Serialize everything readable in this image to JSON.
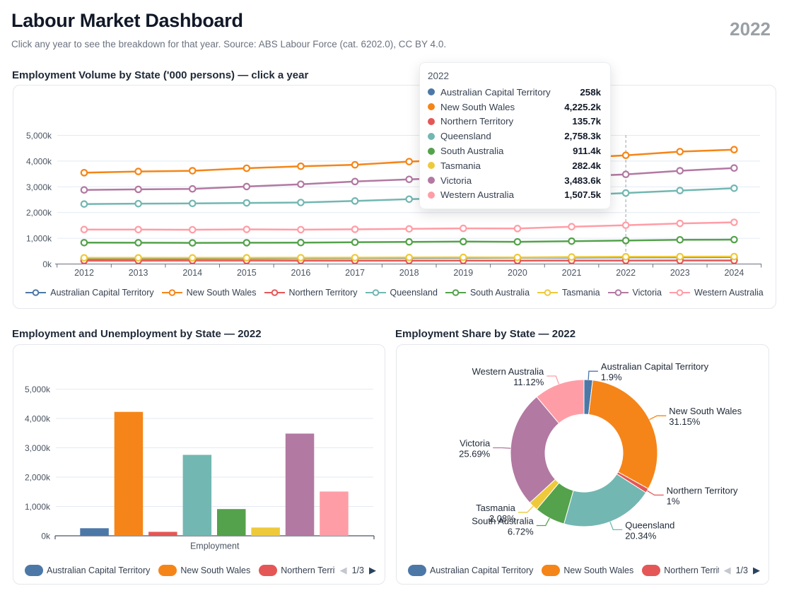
{
  "header": {
    "title": "Labour Market Dashboard",
    "year_badge": "2022",
    "subtitle": "Click any year to see the breakdown for that year. Source: ABS Labour Force (cat. 6202.0), CC BY 4.0."
  },
  "sections": {
    "line": {
      "heading": "Employment Volume by State ('000 persons) — click a year"
    },
    "bar": {
      "heading": "Employment and Unemployment by State — 2022"
    },
    "pie": {
      "heading": "Employment Share by State — 2022"
    }
  },
  "tooltip": {
    "title": "2022",
    "rows": [
      {
        "name": "Australian Capital Territory",
        "value": "258k",
        "color": "#4c78a8"
      },
      {
        "name": "New South Wales",
        "value": "4,225.2k",
        "color": "#f58518"
      },
      {
        "name": "Northern Territory",
        "value": "135.7k",
        "color": "#e45756"
      },
      {
        "name": "Queensland",
        "value": "2,758.3k",
        "color": "#72b7b2"
      },
      {
        "name": "South Australia",
        "value": "911.4k",
        "color": "#54a24b"
      },
      {
        "name": "Tasmania",
        "value": "282.4k",
        "color": "#eeca3b"
      },
      {
        "name": "Victoria",
        "value": "3,483.6k",
        "color": "#b279a2"
      },
      {
        "name": "Western Australia",
        "value": "1,507.5k",
        "color": "#ff9da6"
      }
    ]
  },
  "legend_pager": {
    "page": "1/3",
    "prev_icon": "◀",
    "next_icon": "▶"
  },
  "chart_data": [
    {
      "id": "employment-volume-line",
      "type": "line",
      "title": "Employment Volume by State ('000 persons) — click a year",
      "x": [
        "2012",
        "2013",
        "2014",
        "2015",
        "2016",
        "2017",
        "2018",
        "2019",
        "2020",
        "2021",
        "2022",
        "2023",
        "2024"
      ],
      "selected_x": "2022",
      "ylabel": "'000 persons",
      "ylim": [
        0,
        5500
      ],
      "yticks": [
        "0k",
        "1,000k",
        "2,000k",
        "3,000k",
        "4,000k",
        "5,000k"
      ],
      "grid": true,
      "legend_position": "bottom",
      "series": [
        {
          "name": "Australian Capital Territory",
          "color": "#4c78a8",
          "values": [
            206,
            209,
            212,
            216,
            222,
            228,
            234,
            241,
            244,
            250,
            258,
            262,
            266
          ]
        },
        {
          "name": "New South Wales",
          "color": "#f58518",
          "values": [
            3549,
            3597,
            3625,
            3722,
            3800,
            3856,
            3980,
            4062,
            4020,
            4112,
            4225.2,
            4368,
            4445
          ]
        },
        {
          "name": "Northern Territory",
          "color": "#e45756",
          "values": [
            132,
            133,
            134,
            134,
            133,
            132,
            133,
            134,
            131,
            134,
            135.7,
            136,
            137
          ]
        },
        {
          "name": "Queensland",
          "color": "#72b7b2",
          "values": [
            2330,
            2345,
            2355,
            2375,
            2390,
            2450,
            2520,
            2565,
            2550,
            2672,
            2758.3,
            2855,
            2945
          ]
        },
        {
          "name": "South Australia",
          "color": "#54a24b",
          "values": [
            830,
            828,
            822,
            826,
            832,
            845,
            860,
            870,
            862,
            888,
            911.4,
            940,
            948
          ]
        },
        {
          "name": "Tasmania",
          "color": "#eeca3b",
          "values": [
            240,
            239,
            238,
            242,
            244,
            247,
            252,
            258,
            255,
            272,
            282.4,
            286,
            288
          ]
        },
        {
          "name": "Victoria",
          "color": "#b279a2",
          "values": [
            2879,
            2900,
            2920,
            3010,
            3100,
            3205,
            3290,
            3358,
            3295,
            3402,
            3483.6,
            3625,
            3730
          ]
        },
        {
          "name": "Western Australia",
          "color": "#ff9da6",
          "values": [
            1340,
            1338,
            1332,
            1345,
            1335,
            1348,
            1365,
            1385,
            1378,
            1450,
            1507.5,
            1578,
            1620
          ]
        }
      ]
    },
    {
      "id": "employment-unemployment-bar",
      "type": "bar",
      "title": "Employment and Unemployment by State — 2022",
      "categories": [
        "Employment"
      ],
      "ylim": [
        0,
        5500
      ],
      "yticks": [
        "0k",
        "1,000k",
        "2,000k",
        "3,000k",
        "4,000k",
        "5,000k"
      ],
      "series": [
        {
          "name": "Australian Capital Territory",
          "color": "#4c78a8",
          "values": [
            258
          ]
        },
        {
          "name": "New South Wales",
          "color": "#f58518",
          "values": [
            4225.2
          ]
        },
        {
          "name": "Northern Territory",
          "color": "#e45756",
          "values": [
            135.7
          ]
        },
        {
          "name": "Queensland",
          "color": "#72b7b2",
          "values": [
            2758.3
          ]
        },
        {
          "name": "South Australia",
          "color": "#54a24b",
          "values": [
            911.4
          ]
        },
        {
          "name": "Tasmania",
          "color": "#eeca3b",
          "values": [
            282.4
          ]
        },
        {
          "name": "Victoria",
          "color": "#b279a2",
          "values": [
            3483.6
          ]
        },
        {
          "name": "Western Australia",
          "color": "#ff9da6",
          "values": [
            1507.5
          ]
        }
      ]
    },
    {
      "id": "employment-share-pie",
      "type": "pie",
      "title": "Employment Share by State — 2022",
      "donut": true,
      "slices": [
        {
          "name": "Australian Capital Territory",
          "color": "#4c78a8",
          "percent": 1.9,
          "label": "1.9%",
          "value_k": 258
        },
        {
          "name": "New South Wales",
          "color": "#f58518",
          "percent": 31.15,
          "label": "31.15%",
          "value_k": 4225.2
        },
        {
          "name": "Northern Territory",
          "color": "#e45756",
          "percent": 1,
          "label": "1%",
          "value_k": 135.7
        },
        {
          "name": "Queensland",
          "color": "#72b7b2",
          "percent": 20.34,
          "label": "20.34%",
          "value_k": 2758.3
        },
        {
          "name": "South Australia",
          "color": "#54a24b",
          "percent": 6.72,
          "label": "6.72%",
          "value_k": 911.4
        },
        {
          "name": "Tasmania",
          "color": "#eeca3b",
          "percent": 2.08,
          "label": "2.08%",
          "value_k": 282.4
        },
        {
          "name": "Victoria",
          "color": "#b279a2",
          "percent": 25.69,
          "label": "25.69%",
          "value_k": 3483.6
        },
        {
          "name": "Western Australia",
          "color": "#ff9da6",
          "percent": 11.12,
          "label": "11.12%",
          "value_k": 1507.5
        }
      ]
    }
  ]
}
